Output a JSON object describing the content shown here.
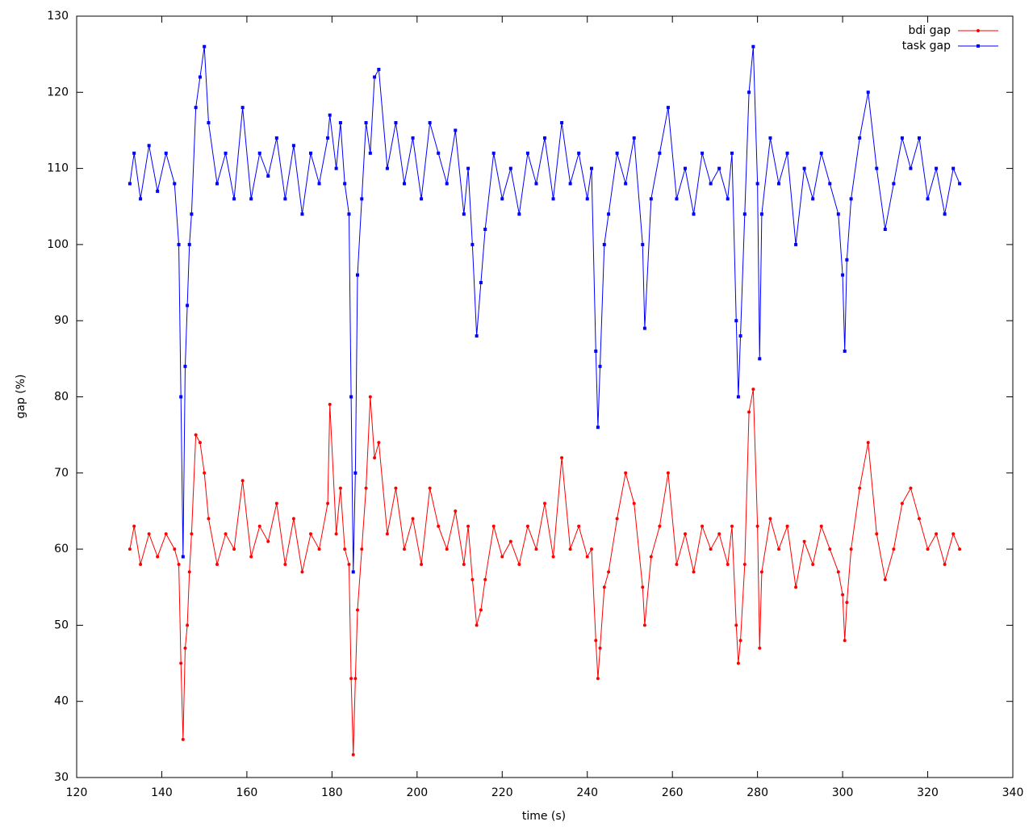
{
  "chart_data": {
    "type": "line",
    "xlabel": "time (s)",
    "ylabel": "gap (%)",
    "xlim": [
      120,
      340
    ],
    "xticks": [
      120,
      140,
      160,
      180,
      200,
      220,
      240,
      260,
      280,
      300,
      320,
      340
    ],
    "ylim": [
      30,
      130
    ],
    "yticks": [
      30,
      40,
      50,
      60,
      70,
      80,
      90,
      100,
      110,
      120,
      130
    ],
    "legend": "upper right",
    "x": [
      132.5,
      133.5,
      135,
      137,
      139,
      141,
      143,
      144,
      144.5,
      145,
      145.5,
      146,
      146.5,
      147,
      148,
      149,
      150,
      151,
      153,
      155,
      157,
      159,
      161,
      163,
      165,
      167,
      169,
      171,
      173,
      175,
      177,
      179,
      179.5,
      181,
      182,
      183,
      184,
      184.5,
      185,
      185.5,
      186,
      187,
      188,
      189,
      190,
      191,
      193,
      195,
      197,
      199,
      201,
      203,
      205,
      207,
      209,
      211,
      212,
      213,
      214,
      215,
      216,
      218,
      220,
      222,
      224,
      226,
      228,
      230,
      232,
      234,
      236,
      238,
      240,
      241,
      242,
      242.5,
      243,
      244,
      245,
      247,
      249,
      251,
      253,
      253.5,
      255,
      257,
      259,
      261,
      263,
      265,
      267,
      269,
      271,
      273,
      274,
      275,
      275.5,
      276,
      277,
      278,
      279,
      280,
      280.5,
      281,
      283,
      285,
      287,
      289,
      291,
      293,
      295,
      297,
      299,
      300,
      300.5,
      301,
      302,
      304,
      306,
      308,
      310,
      312,
      314,
      316,
      318,
      320,
      322,
      324,
      326,
      327.5
    ],
    "series": [
      {
        "name": "bdi gap",
        "color": "#ff0000",
        "marker": "circle",
        "values": [
          60,
          63,
          58,
          62,
          59,
          62,
          60,
          58,
          45,
          35,
          47,
          50,
          57,
          62,
          75,
          74,
          70,
          64,
          58,
          62,
          60,
          69,
          59,
          63,
          61,
          66,
          58,
          64,
          57,
          62,
          60,
          66,
          79,
          62,
          68,
          60,
          58,
          43,
          33,
          43,
          52,
          60,
          68,
          80,
          72,
          74,
          62,
          68,
          60,
          64,
          58,
          68,
          63,
          60,
          65,
          58,
          63,
          56,
          50,
          52,
          56,
          63,
          59,
          61,
          58,
          63,
          60,
          66,
          59,
          72,
          60,
          63,
          59,
          60,
          48,
          43,
          47,
          55,
          57,
          64,
          70,
          66,
          55,
          50,
          59,
          63,
          70,
          58,
          62,
          57,
          63,
          60,
          62,
          58,
          63,
          50,
          45,
          48,
          58,
          78,
          81,
          63,
          47,
          57,
          64,
          60,
          63,
          55,
          61,
          58,
          63,
          60,
          57,
          54,
          48,
          53,
          60,
          68,
          74,
          62,
          56,
          60,
          66,
          68,
          64,
          60,
          62,
          58,
          62,
          60
        ]
      },
      {
        "name": "task gap",
        "color": "#0000ff",
        "marker": "square",
        "values": [
          108,
          112,
          106,
          113,
          107,
          112,
          108,
          100,
          80,
          59,
          84,
          92,
          100,
          104,
          118,
          122,
          126,
          116,
          108,
          112,
          106,
          118,
          106,
          112,
          109,
          114,
          106,
          113,
          104,
          112,
          108,
          114,
          117,
          110,
          116,
          108,
          104,
          80,
          57,
          70,
          96,
          106,
          116,
          112,
          122,
          123,
          110,
          116,
          108,
          114,
          106,
          116,
          112,
          108,
          115,
          104,
          110,
          100,
          88,
          95,
          102,
          112,
          106,
          110,
          104,
          112,
          108,
          114,
          106,
          116,
          108,
          112,
          106,
          110,
          86,
          76,
          84,
          100,
          104,
          112,
          108,
          114,
          100,
          89,
          106,
          112,
          118,
          106,
          110,
          104,
          112,
          108,
          110,
          106,
          112,
          90,
          80,
          88,
          104,
          120,
          126,
          108,
          85,
          104,
          114,
          108,
          112,
          100,
          110,
          106,
          112,
          108,
          104,
          96,
          86,
          98,
          106,
          114,
          120,
          110,
          102,
          108,
          114,
          110,
          114,
          106,
          110,
          104,
          110,
          108
        ]
      }
    ]
  }
}
